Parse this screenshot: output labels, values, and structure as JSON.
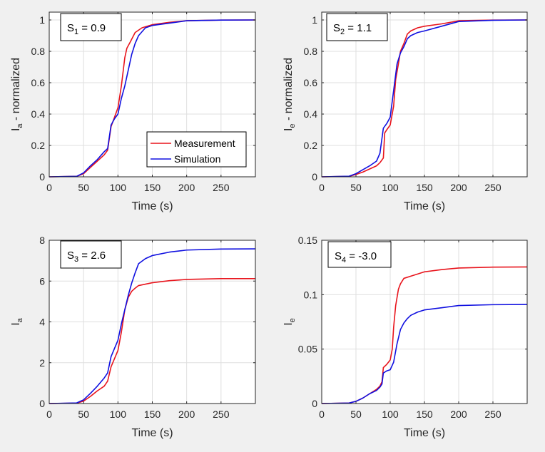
{
  "colors": {
    "measurement": "#e8141c",
    "simulation": "#1010e0",
    "grid": "#dfdfdf",
    "axis": "#262626",
    "figure_bg": "#f0f0f0"
  },
  "legend": {
    "entries": [
      "Measurement",
      "Simulation"
    ],
    "location": "bottom-right of first panel"
  },
  "chart_data": [
    {
      "type": "line",
      "panel": "top-left",
      "annotation": {
        "base": "S",
        "sub": "1",
        "text": " = 0.9"
      },
      "xlabel": "Time (s)",
      "ylabel": {
        "base": "I",
        "sub": "a",
        "text": " - normalized"
      },
      "xlim": [
        0,
        300
      ],
      "ylim": [
        0,
        1.05
      ],
      "xticks": [
        0,
        50,
        100,
        150,
        200,
        250
      ],
      "xtick_labels": [
        "0",
        "50",
        "100",
        "150",
        "200",
        "250"
      ],
      "yticks": [
        0,
        0.2,
        0.4,
        0.6,
        0.8,
        1
      ],
      "ytick_labels": [
        "0",
        "0.2",
        "0.4",
        "0.6",
        "0.8",
        "1"
      ],
      "grid": true,
      "series": [
        {
          "name": "Measurement",
          "x": [
            0,
            40,
            50,
            60,
            70,
            80,
            85,
            90,
            95,
            100,
            105,
            110,
            113,
            118,
            125,
            135,
            150,
            175,
            200,
            250,
            300
          ],
          "y": [
            0,
            0.003,
            0.02,
            0.06,
            0.1,
            0.14,
            0.17,
            0.32,
            0.38,
            0.44,
            0.58,
            0.76,
            0.82,
            0.86,
            0.92,
            0.95,
            0.97,
            0.985,
            0.995,
            0.999,
            1.0
          ]
        },
        {
          "name": "Simulation",
          "x": [
            0,
            40,
            50,
            60,
            70,
            80,
            85,
            90,
            95,
            100,
            105,
            110,
            115,
            120,
            125,
            130,
            140,
            150,
            175,
            200,
            250,
            300
          ],
          "y": [
            0,
            0.003,
            0.025,
            0.07,
            0.11,
            0.16,
            0.18,
            0.33,
            0.37,
            0.4,
            0.5,
            0.58,
            0.68,
            0.78,
            0.85,
            0.9,
            0.95,
            0.965,
            0.98,
            0.995,
            0.999,
            1.0
          ]
        }
      ]
    },
    {
      "type": "line",
      "panel": "top-right",
      "annotation": {
        "base": "S",
        "sub": "2",
        "text": " = 1.1"
      },
      "xlabel": "Time (s)",
      "ylabel": {
        "base": "I",
        "sub": "e",
        "text": " - normalized"
      },
      "xlim": [
        0,
        300
      ],
      "ylim": [
        0,
        1.05
      ],
      "xticks": [
        0,
        50,
        100,
        150,
        200,
        250
      ],
      "xtick_labels": [
        "0",
        "50",
        "100",
        "150",
        "200",
        "250"
      ],
      "yticks": [
        0,
        0.2,
        0.4,
        0.6,
        0.8,
        1
      ],
      "ytick_labels": [
        "0",
        "0.2",
        "0.4",
        "0.6",
        "0.8",
        "1"
      ],
      "grid": true,
      "series": [
        {
          "name": "Measurement",
          "x": [
            0,
            40,
            50,
            60,
            70,
            80,
            85,
            90,
            92,
            95,
            100,
            105,
            108,
            112,
            115,
            120,
            125,
            130,
            140,
            150,
            175,
            200,
            250,
            300
          ],
          "y": [
            0,
            0.003,
            0.015,
            0.03,
            0.05,
            0.07,
            0.09,
            0.12,
            0.28,
            0.3,
            0.33,
            0.45,
            0.62,
            0.72,
            0.8,
            0.85,
            0.91,
            0.93,
            0.95,
            0.96,
            0.975,
            0.995,
            0.999,
            1.0
          ]
        },
        {
          "name": "Simulation",
          "x": [
            0,
            40,
            50,
            60,
            70,
            80,
            85,
            90,
            95,
            100,
            105,
            110,
            115,
            120,
            125,
            130,
            140,
            150,
            175,
            200,
            250,
            300
          ],
          "y": [
            0,
            0.004,
            0.02,
            0.045,
            0.07,
            0.1,
            0.15,
            0.31,
            0.34,
            0.38,
            0.55,
            0.72,
            0.79,
            0.83,
            0.88,
            0.9,
            0.92,
            0.93,
            0.96,
            0.99,
            0.998,
            1.0
          ]
        }
      ]
    },
    {
      "type": "line",
      "panel": "bottom-left",
      "annotation": {
        "base": "S",
        "sub": "3",
        "text": " = 2.6"
      },
      "xlabel": "Time (s)",
      "ylabel": {
        "base": "I",
        "sub": "a",
        "text": ""
      },
      "xlim": [
        0,
        300
      ],
      "ylim": [
        0,
        8
      ],
      "xticks": [
        0,
        50,
        100,
        150,
        200,
        250
      ],
      "xtick_labels": [
        "0",
        "50",
        "100",
        "150",
        "200",
        "250"
      ],
      "yticks": [
        0,
        2,
        4,
        6,
        8
      ],
      "ytick_labels": [
        "0",
        "2",
        "4",
        "6",
        "8"
      ],
      "grid": true,
      "series": [
        {
          "name": "Measurement",
          "x": [
            0,
            40,
            50,
            60,
            70,
            80,
            85,
            90,
            95,
            100,
            105,
            110,
            115,
            120,
            125,
            130,
            140,
            150,
            175,
            200,
            250,
            300
          ],
          "y": [
            0,
            0.02,
            0.12,
            0.35,
            0.62,
            0.85,
            1.1,
            1.8,
            2.2,
            2.6,
            3.5,
            4.6,
            5.2,
            5.5,
            5.65,
            5.78,
            5.85,
            5.92,
            6.02,
            6.08,
            6.12,
            6.12
          ]
        },
        {
          "name": "Simulation",
          "x": [
            0,
            40,
            50,
            60,
            70,
            80,
            85,
            90,
            95,
            100,
            105,
            110,
            115,
            120,
            125,
            130,
            140,
            150,
            175,
            200,
            250,
            300
          ],
          "y": [
            0,
            0.03,
            0.18,
            0.5,
            0.85,
            1.25,
            1.5,
            2.3,
            2.7,
            3.1,
            3.9,
            4.6,
            5.3,
            5.9,
            6.4,
            6.85,
            7.1,
            7.25,
            7.42,
            7.52,
            7.57,
            7.58
          ]
        }
      ]
    },
    {
      "type": "line",
      "panel": "bottom-right",
      "annotation": {
        "base": "S",
        "sub": "4",
        "text": " = -3.0"
      },
      "xlabel": "Time (s)",
      "ylabel": {
        "base": "I",
        "sub": "e",
        "text": ""
      },
      "xlim": [
        0,
        300
      ],
      "ylim": [
        0,
        0.15
      ],
      "xticks": [
        0,
        50,
        100,
        150,
        200,
        250
      ],
      "xtick_labels": [
        "0",
        "50",
        "100",
        "150",
        "200",
        "250"
      ],
      "yticks": [
        0,
        0.05,
        0.1,
        0.15
      ],
      "ytick_labels": [
        "0",
        "0.05",
        "0.1",
        "0.15"
      ],
      "grid": true,
      "series": [
        {
          "name": "Measurement",
          "x": [
            0,
            40,
            50,
            60,
            70,
            80,
            85,
            88,
            90,
            95,
            100,
            103,
            105,
            108,
            112,
            115,
            120,
            130,
            140,
            150,
            175,
            200,
            250,
            300
          ],
          "y": [
            0,
            0.0005,
            0.002,
            0.005,
            0.009,
            0.013,
            0.016,
            0.02,
            0.033,
            0.036,
            0.04,
            0.05,
            0.07,
            0.09,
            0.105,
            0.11,
            0.115,
            0.117,
            0.119,
            0.121,
            0.123,
            0.1245,
            0.1253,
            0.1255
          ]
        },
        {
          "name": "Simulation",
          "x": [
            0,
            40,
            50,
            60,
            70,
            80,
            85,
            88,
            90,
            95,
            100,
            105,
            110,
            115,
            120,
            125,
            130,
            140,
            150,
            175,
            200,
            250,
            300
          ],
          "y": [
            0,
            0.0005,
            0.002,
            0.005,
            0.009,
            0.012,
            0.015,
            0.018,
            0.028,
            0.03,
            0.031,
            0.038,
            0.055,
            0.068,
            0.074,
            0.078,
            0.081,
            0.084,
            0.086,
            0.088,
            0.09,
            0.0908,
            0.091
          ]
        }
      ]
    }
  ]
}
